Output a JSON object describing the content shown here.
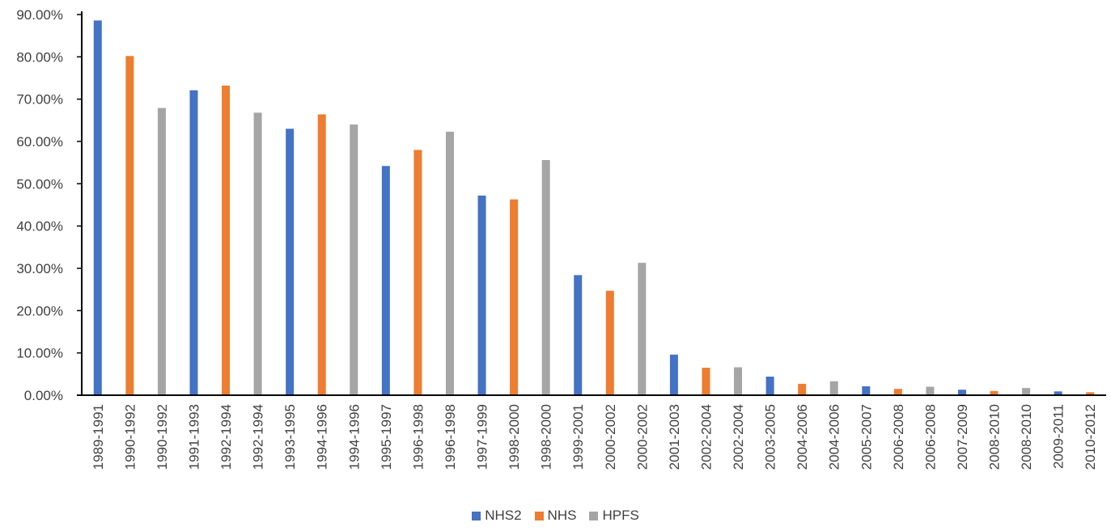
{
  "chart_data": {
    "type": "bar",
    "title": "",
    "xlabel": "",
    "ylabel": "",
    "ylim": [
      0,
      90
    ],
    "y_tick_labels": [
      "0.00%",
      "10.00%",
      "20.00%",
      "30.00%",
      "40.00%",
      "50.00%",
      "60.00%",
      "70.00%",
      "80.00%",
      "90.00%"
    ],
    "grid": false,
    "legend_position": "bottom",
    "categories": [
      "1989-1991",
      "1990-1992",
      "1990-1992",
      "1991-1993",
      "1992-1994",
      "1992-1994",
      "1993-1995",
      "1994-1996",
      "1994-1996",
      "1995-1997",
      "1996-1998",
      "1996-1998",
      "1997-1999",
      "1998-2000",
      "1998-2000",
      "1999-2001",
      "2000-2002",
      "2000-2002",
      "2001-2003",
      "2002-2004",
      "2002-2004",
      "2003-2005",
      "2004-2006",
      "2004-2006",
      "2005-2007",
      "2006-2008",
      "2006-2008",
      "2007-2009",
      "2008-2010",
      "2008-2010",
      "2009-2011",
      "2010-2012"
    ],
    "bar_series": [
      0,
      1,
      2,
      0,
      1,
      2,
      0,
      1,
      2,
      0,
      1,
      2,
      0,
      1,
      2,
      0,
      1,
      2,
      0,
      1,
      2,
      0,
      1,
      2,
      0,
      1,
      2,
      0,
      1,
      2,
      0,
      1
    ],
    "values": [
      88.6,
      80.2,
      67.9,
      72.1,
      73.2,
      66.8,
      63.0,
      66.4,
      64.0,
      54.2,
      58.0,
      62.3,
      47.2,
      46.3,
      55.6,
      28.4,
      24.7,
      31.3,
      9.6,
      6.5,
      6.6,
      4.4,
      2.7,
      3.3,
      2.1,
      1.5,
      2.0,
      1.3,
      1.0,
      1.7,
      0.9,
      0.7
    ],
    "series": [
      {
        "name": "NHS2",
        "color": "#4472C4"
      },
      {
        "name": "NHS",
        "color": "#ED7D31"
      },
      {
        "name": "HPFS",
        "color": "#A5A5A5"
      }
    ]
  }
}
